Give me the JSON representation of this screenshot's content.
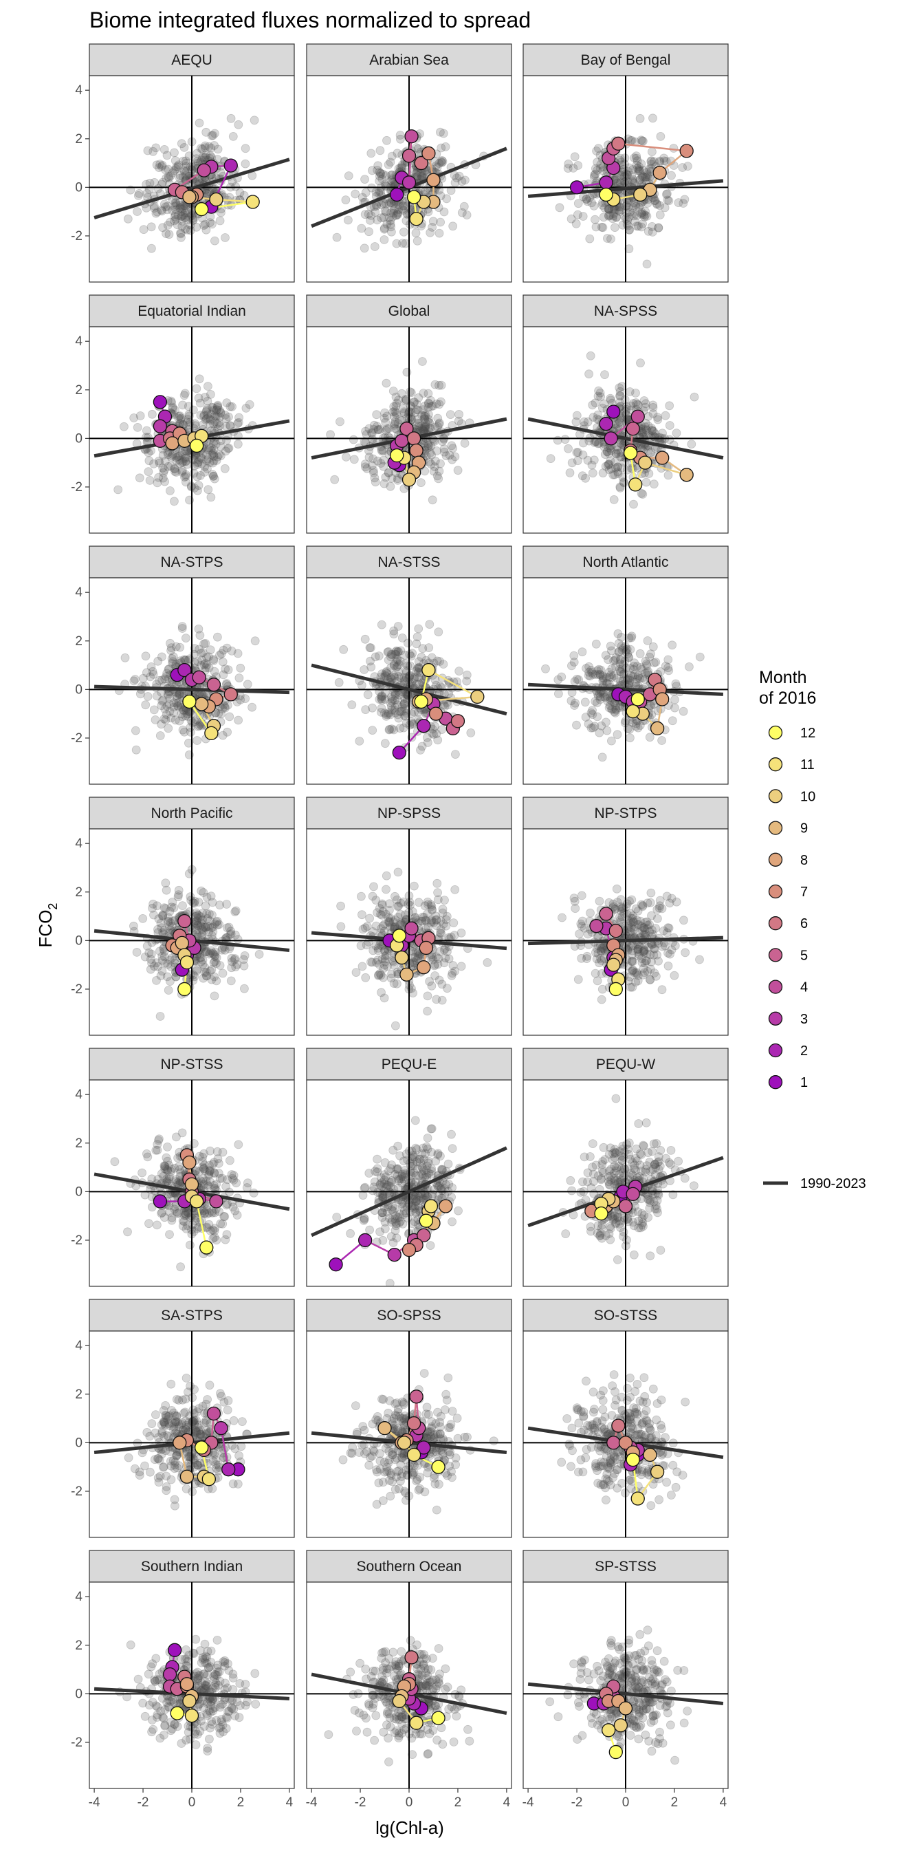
{
  "chart_data": {
    "type": "scatter",
    "title": "Biome integrated fluxes normalized to spread",
    "xlabel": "lg(Chl-a)",
    "ylabel_main": "FCO",
    "ylabel_sub": "2",
    "xlim": [
      -4.2,
      4.2
    ],
    "ylim": [
      -3.9,
      4.6
    ],
    "xticks": [
      -4,
      -2,
      0,
      2,
      4
    ],
    "yticks": [
      -2,
      0,
      2,
      4
    ],
    "legend": {
      "title_line1": "Month",
      "title_line2": "of 2016",
      "months": [
        "12",
        "11",
        "10",
        "9",
        "8",
        "7",
        "6",
        "5",
        "4",
        "3",
        "2",
        "1"
      ],
      "colors": [
        "#ffff66",
        "#f5e27a",
        "#eccf7f",
        "#e5ba7f",
        "#e0a67c",
        "#d98e7c",
        "#d27885",
        "#ca6391",
        "#c14f9b",
        "#b73ba8",
        "#ab27b2",
        "#9e11bb"
      ],
      "line_label": "1990-2023"
    },
    "background_series": {
      "name": "1990-2023 (monthly anomalies)",
      "color": "#4d4d4d"
    },
    "panels": [
      {
        "name": "AEQU",
        "slope": 0.3,
        "intercept": -0.05,
        "months": [
          [
            0.8,
            -0.8
          ],
          [
            1.6,
            0.9
          ],
          [
            0.8,
            0.85
          ],
          [
            0.5,
            0.7
          ],
          [
            -0.7,
            -0.1
          ],
          [
            -0.4,
            -0.2
          ],
          [
            0.2,
            -0.3
          ],
          [
            0.0,
            -0.4
          ],
          [
            -0.1,
            -0.4
          ],
          [
            1.0,
            -0.5
          ],
          [
            2.5,
            -0.6
          ],
          [
            0.4,
            -0.9
          ]
        ]
      },
      {
        "name": "Arabian Sea",
        "slope": 0.4,
        "intercept": 0.0,
        "months": [
          [
            -0.5,
            -0.3
          ],
          [
            -0.3,
            0.4
          ],
          [
            0.0,
            0.2
          ],
          [
            0.1,
            2.1
          ],
          [
            0.0,
            1.3
          ],
          [
            0.5,
            1.0
          ],
          [
            0.8,
            1.4
          ],
          [
            1.0,
            0.3
          ],
          [
            1.0,
            -0.6
          ],
          [
            0.6,
            -0.6
          ],
          [
            0.3,
            -1.3
          ],
          [
            0.2,
            -0.4
          ]
        ]
      },
      {
        "name": "Bay of Bengal",
        "slope": 0.08,
        "intercept": -0.05,
        "months": [
          [
            -2.0,
            0.0
          ],
          [
            -0.8,
            0.2
          ],
          [
            -0.5,
            0.8
          ],
          [
            -0.7,
            1.2
          ],
          [
            -0.5,
            1.6
          ],
          [
            -0.3,
            1.8
          ],
          [
            2.5,
            1.5
          ],
          [
            1.4,
            0.6
          ],
          [
            1.0,
            -0.1
          ],
          [
            0.6,
            -0.3
          ],
          [
            -0.5,
            -0.5
          ],
          [
            -0.8,
            -0.3
          ]
        ]
      },
      {
        "name": "Equatorial Indian",
        "slope": 0.18,
        "intercept": 0.0,
        "months": [
          [
            -1.3,
            1.5
          ],
          [
            -1.1,
            0.9
          ],
          [
            -1.3,
            0.5
          ],
          [
            -1.3,
            -0.1
          ],
          [
            -0.8,
            0.3
          ],
          [
            -0.9,
            0.0
          ],
          [
            -0.5,
            0.2
          ],
          [
            -0.8,
            -0.2
          ],
          [
            -0.3,
            -0.1
          ],
          [
            0.1,
            0.0
          ],
          [
            0.4,
            0.1
          ],
          [
            0.2,
            -0.3
          ]
        ]
      },
      {
        "name": "Global",
        "slope": 0.2,
        "intercept": 0.0,
        "months": [
          [
            -0.4,
            -1.1
          ],
          [
            -0.6,
            -1.0
          ],
          [
            -0.5,
            -0.3
          ],
          [
            -0.3,
            -0.1
          ],
          [
            -0.1,
            0.4
          ],
          [
            0.2,
            0.0
          ],
          [
            0.3,
            -0.5
          ],
          [
            0.4,
            -1.0
          ],
          [
            0.2,
            -1.4
          ],
          [
            0.0,
            -1.7
          ],
          [
            -0.2,
            -0.8
          ],
          [
            -0.5,
            -0.7
          ]
        ]
      },
      {
        "name": "NA-SPSS",
        "slope": -0.2,
        "intercept": 0.0,
        "months": [
          [
            -0.5,
            1.1
          ],
          [
            -0.8,
            0.6
          ],
          [
            -0.6,
            0.0
          ],
          [
            0.5,
            0.9
          ],
          [
            0.3,
            0.4
          ],
          [
            0.2,
            -0.5
          ],
          [
            0.6,
            -0.8
          ],
          [
            1.5,
            -0.8
          ],
          [
            2.5,
            -1.5
          ],
          [
            0.8,
            -1.0
          ],
          [
            0.4,
            -1.9
          ],
          [
            0.2,
            -0.6
          ]
        ]
      },
      {
        "name": "NA-STPS",
        "slope": -0.03,
        "intercept": 0.0,
        "months": [
          [
            -0.6,
            0.6
          ],
          [
            -0.3,
            0.8
          ],
          [
            0.0,
            0.4
          ],
          [
            0.3,
            0.5
          ],
          [
            0.9,
            0.2
          ],
          [
            1.6,
            -0.2
          ],
          [
            1.0,
            -0.4
          ],
          [
            0.7,
            -0.7
          ],
          [
            0.4,
            -0.6
          ],
          [
            0.9,
            -1.5
          ],
          [
            0.8,
            -1.8
          ],
          [
            -0.1,
            -0.5
          ]
        ]
      },
      {
        "name": "NA-STSS",
        "slope": -0.25,
        "intercept": 0.0,
        "months": [
          [
            -0.4,
            -2.6
          ],
          [
            0.6,
            -1.5
          ],
          [
            1.0,
            -0.6
          ],
          [
            1.5,
            -1.2
          ],
          [
            1.8,
            -1.6
          ],
          [
            2.0,
            -1.3
          ],
          [
            1.1,
            -1.0
          ],
          [
            0.7,
            -0.4
          ],
          [
            0.4,
            -0.5
          ],
          [
            2.8,
            -0.3
          ],
          [
            0.8,
            0.8
          ],
          [
            0.5,
            -0.5
          ]
        ]
      },
      {
        "name": "North Atlantic",
        "slope": -0.05,
        "intercept": 0.0,
        "months": [
          [
            -0.3,
            -0.2
          ],
          [
            0.0,
            -0.3
          ],
          [
            0.3,
            -0.5
          ],
          [
            0.6,
            -0.5
          ],
          [
            1.0,
            -0.2
          ],
          [
            1.2,
            0.4
          ],
          [
            1.4,
            0.0
          ],
          [
            1.5,
            -0.4
          ],
          [
            1.3,
            -1.6
          ],
          [
            0.7,
            -1.0
          ],
          [
            0.3,
            -0.9
          ],
          [
            0.5,
            -0.4
          ]
        ]
      },
      {
        "name": "North Pacific",
        "slope": -0.1,
        "intercept": 0.0,
        "months": [
          [
            -0.4,
            -1.2
          ],
          [
            -0.2,
            -0.6
          ],
          [
            0.1,
            -0.3
          ],
          [
            -0.1,
            0.0
          ],
          [
            -0.3,
            0.8
          ],
          [
            -0.5,
            0.2
          ],
          [
            -0.8,
            -0.2
          ],
          [
            -0.6,
            -0.3
          ],
          [
            -0.4,
            -0.1
          ],
          [
            -0.3,
            -0.6
          ],
          [
            -0.2,
            -0.9
          ],
          [
            -0.3,
            -2.0
          ]
        ]
      },
      {
        "name": "NP-SPSS",
        "slope": -0.08,
        "intercept": 0.0,
        "months": [
          [
            -0.8,
            0.0
          ],
          [
            -0.3,
            -0.2
          ],
          [
            0.0,
            0.2
          ],
          [
            0.1,
            0.5
          ],
          [
            0.5,
            0.0
          ],
          [
            0.8,
            0.1
          ],
          [
            0.7,
            -0.3
          ],
          [
            0.6,
            -1.1
          ],
          [
            -0.1,
            -1.4
          ],
          [
            -0.3,
            -0.7
          ],
          [
            -0.5,
            -0.2
          ],
          [
            -0.4,
            0.2
          ]
        ]
      },
      {
        "name": "NP-STPS",
        "slope": 0.03,
        "intercept": 0.0,
        "months": [
          [
            -0.6,
            -1.2
          ],
          [
            -0.5,
            -0.7
          ],
          [
            -0.8,
            0.5
          ],
          [
            -1.2,
            0.6
          ],
          [
            -0.8,
            1.1
          ],
          [
            -0.4,
            0.4
          ],
          [
            -0.5,
            -0.2
          ],
          [
            -0.3,
            -0.6
          ],
          [
            -0.4,
            -0.8
          ],
          [
            -0.5,
            -1.0
          ],
          [
            -0.3,
            -1.6
          ],
          [
            -0.4,
            -2.0
          ]
        ]
      },
      {
        "name": "NP-STSS",
        "slope": -0.18,
        "intercept": 0.0,
        "months": [
          [
            -1.3,
            -0.4
          ],
          [
            -0.3,
            -0.4
          ],
          [
            0.3,
            -0.3
          ],
          [
            1.0,
            -0.4
          ],
          [
            0.0,
            0.0
          ],
          [
            -0.1,
            0.5
          ],
          [
            -0.2,
            1.5
          ],
          [
            -0.1,
            1.2
          ],
          [
            0.0,
            0.3
          ],
          [
            0.0,
            -0.2
          ],
          [
            0.2,
            -0.4
          ],
          [
            0.6,
            -2.3
          ]
        ]
      },
      {
        "name": "PEQU-E",
        "slope": 0.45,
        "intercept": 0.0,
        "months": [
          [
            -3.0,
            -3.0
          ],
          [
            -1.8,
            -2.0
          ],
          [
            -0.6,
            -2.6
          ],
          [
            0.2,
            -2.0
          ],
          [
            0.6,
            -1.8
          ],
          [
            0.3,
            -2.2
          ],
          [
            0.0,
            -2.4
          ],
          [
            1.5,
            -0.6
          ],
          [
            1.0,
            -1.3
          ],
          [
            0.8,
            -0.8
          ],
          [
            0.9,
            -0.6
          ],
          [
            0.7,
            -1.2
          ]
        ]
      },
      {
        "name": "PEQU-W",
        "slope": 0.35,
        "intercept": 0.0,
        "months": [
          [
            -0.2,
            -0.2
          ],
          [
            -0.1,
            0.0
          ],
          [
            0.4,
            0.2
          ],
          [
            0.3,
            -0.1
          ],
          [
            0.0,
            -0.6
          ],
          [
            -1.0,
            -0.5
          ],
          [
            -1.4,
            -0.8
          ],
          [
            -0.8,
            -0.6
          ],
          [
            -0.5,
            -0.4
          ],
          [
            -0.7,
            -0.3
          ],
          [
            -1.0,
            -0.5
          ],
          [
            -1.0,
            -0.9
          ]
        ]
      },
      {
        "name": "SA-STPS",
        "slope": 0.1,
        "intercept": 0.0,
        "months": [
          [
            1.9,
            -1.1
          ],
          [
            1.5,
            -1.1
          ],
          [
            1.2,
            0.6
          ],
          [
            0.9,
            1.2
          ],
          [
            0.8,
            0.0
          ],
          [
            0.5,
            -0.3
          ],
          [
            -0.2,
            0.1
          ],
          [
            -0.5,
            0.0
          ],
          [
            -0.2,
            -1.4
          ],
          [
            0.5,
            -1.4
          ],
          [
            0.7,
            -1.5
          ],
          [
            0.4,
            -0.2
          ]
        ]
      },
      {
        "name": "SO-SPSS",
        "slope": -0.1,
        "intercept": 0.0,
        "months": [
          [
            0.5,
            -0.4
          ],
          [
            0.6,
            -0.2
          ],
          [
            0.3,
            0.3
          ],
          [
            0.4,
            0.6
          ],
          [
            0.3,
            1.9
          ],
          [
            0.2,
            0.8
          ],
          [
            -0.1,
            0.1
          ],
          [
            -0.3,
            0.0
          ],
          [
            -1.0,
            0.6
          ],
          [
            -0.2,
            0.0
          ],
          [
            0.2,
            -0.5
          ],
          [
            1.2,
            -1.0
          ]
        ]
      },
      {
        "name": "SO-STSS",
        "slope": -0.15,
        "intercept": 0.0,
        "months": [
          [
            0.5,
            -0.5
          ],
          [
            0.2,
            -0.9
          ],
          [
            0.5,
            -0.3
          ],
          [
            0.2,
            -0.2
          ],
          [
            -0.5,
            0.0
          ],
          [
            -0.3,
            0.7
          ],
          [
            0.0,
            0.0
          ],
          [
            0.3,
            -0.4
          ],
          [
            1.0,
            -0.5
          ],
          [
            1.3,
            -1.2
          ],
          [
            0.5,
            -2.3
          ],
          [
            0.3,
            -0.7
          ]
        ]
      },
      {
        "name": "Southern Indian",
        "slope": -0.05,
        "intercept": 0.0,
        "months": [
          [
            -0.7,
            1.8
          ],
          [
            -0.8,
            1.1
          ],
          [
            -0.9,
            0.8
          ],
          [
            -0.9,
            0.3
          ],
          [
            -0.6,
            0.2
          ],
          [
            -0.3,
            0.7
          ],
          [
            -0.2,
            0.3
          ],
          [
            -0.2,
            0.4
          ],
          [
            0.0,
            -0.1
          ],
          [
            -0.1,
            -0.3
          ],
          [
            0.0,
            -0.9
          ],
          [
            -0.6,
            -0.8
          ]
        ]
      },
      {
        "name": "Southern Ocean",
        "slope": -0.2,
        "intercept": 0.0,
        "months": [
          [
            0.5,
            -0.6
          ],
          [
            0.2,
            -0.4
          ],
          [
            0.0,
            -0.2
          ],
          [
            0.1,
            0.2
          ],
          [
            0.0,
            0.6
          ],
          [
            0.1,
            1.5
          ],
          [
            0.0,
            0.4
          ],
          [
            -0.2,
            0.3
          ],
          [
            -0.3,
            -0.1
          ],
          [
            -0.4,
            -0.3
          ],
          [
            0.3,
            -1.2
          ],
          [
            1.2,
            -1.0
          ]
        ]
      },
      {
        "name": "SP-STSS",
        "slope": -0.1,
        "intercept": 0.0,
        "months": [
          [
            -1.3,
            -0.4
          ],
          [
            -0.9,
            -0.4
          ],
          [
            -0.6,
            -0.2
          ],
          [
            -0.5,
            -0.1
          ],
          [
            -0.5,
            0.3
          ],
          [
            -0.8,
            0.0
          ],
          [
            -0.7,
            -0.3
          ],
          [
            -0.3,
            -0.3
          ],
          [
            0.0,
            -0.6
          ],
          [
            -0.2,
            -1.3
          ],
          [
            -0.7,
            -1.5
          ],
          [
            -0.4,
            -2.4
          ]
        ]
      }
    ]
  }
}
